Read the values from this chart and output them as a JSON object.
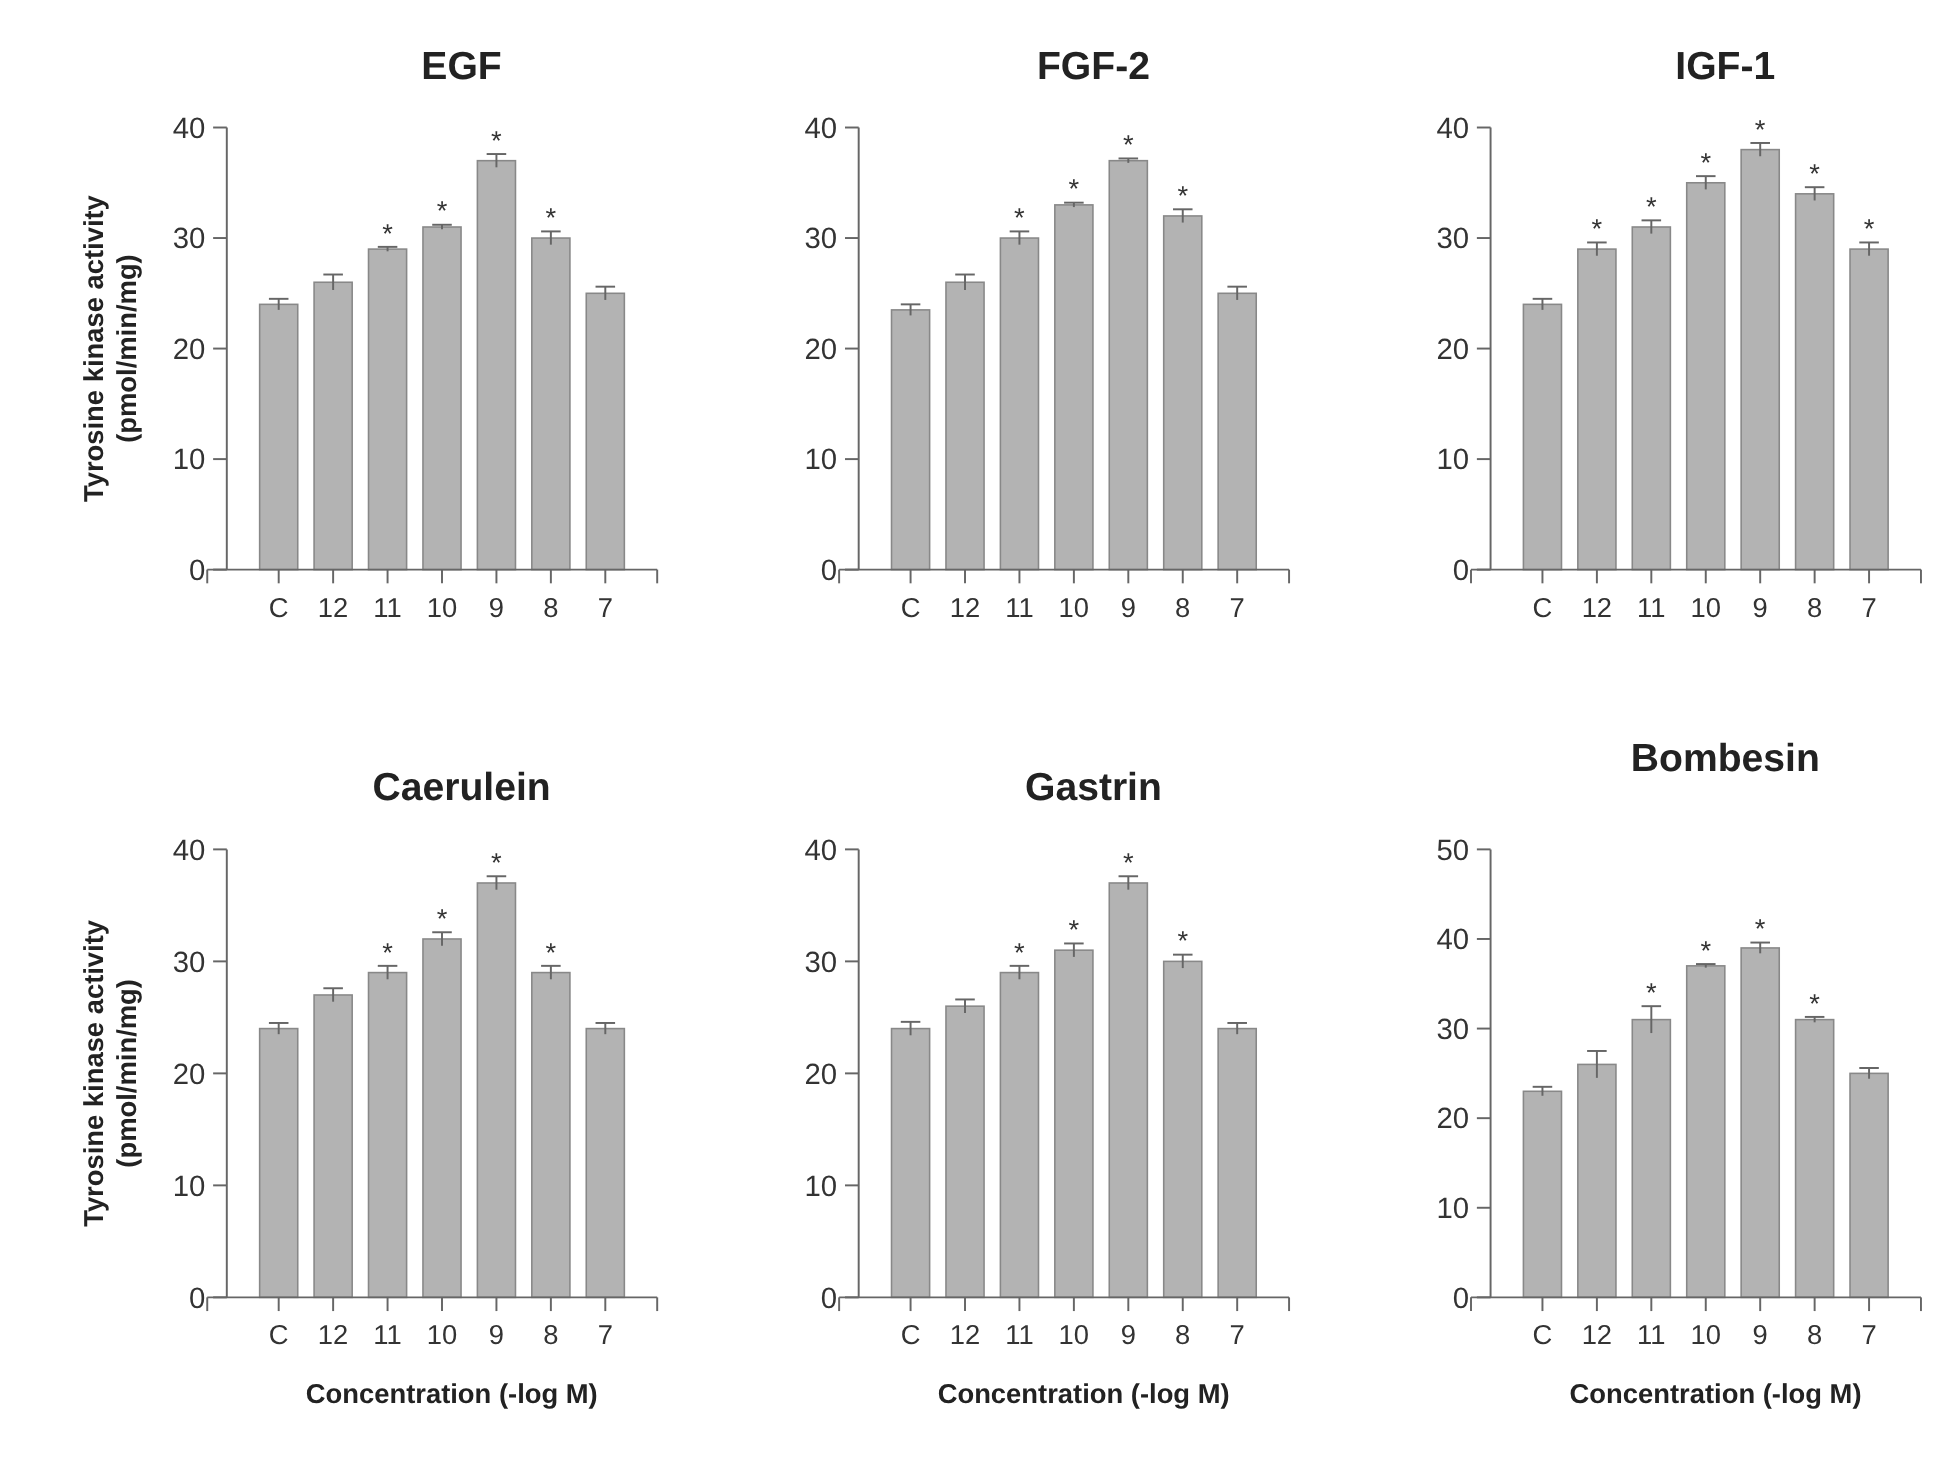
{
  "chart_data": [
    {
      "type": "bar",
      "title": "EGF",
      "ylabel": "Tyrosine kinase activity\n(pmol/min/mg)",
      "categories": [
        "C",
        "12",
        "11",
        "10",
        "9",
        "8",
        "7"
      ],
      "values": [
        24,
        26,
        29,
        31,
        37,
        30,
        25
      ],
      "errors": [
        0.5,
        0.7,
        0.2,
        0.2,
        0.6,
        0.6,
        0.6
      ],
      "color": "#b3b3b3",
      "ylim": [
        0,
        40
      ],
      "yticks": [
        0,
        10,
        20,
        30,
        40
      ],
      "annotations": [
        {
          "text": "*",
          "x": "11",
          "y": 29
        },
        {
          "text": "*",
          "x": "10",
          "y": 31
        },
        {
          "text": "*",
          "x": "9",
          "y": 37
        },
        {
          "text": "*",
          "x": "8",
          "y": 30
        }
      ]
    },
    {
      "type": "bar",
      "title": "FGF-2",
      "categories": [
        "C",
        "12",
        "11",
        "10",
        "9",
        "8",
        "7"
      ],
      "values": [
        23.5,
        26,
        30,
        33,
        37,
        32,
        25
      ],
      "errors": [
        0.5,
        0.7,
        0.6,
        0.2,
        0.2,
        0.6,
        0.6
      ],
      "color": "#b3b3b3",
      "ylim": [
        0,
        40
      ],
      "yticks": [
        0,
        10,
        20,
        30,
        40
      ],
      "annotations": [
        {
          "text": "*",
          "x": "11",
          "y": 30
        },
        {
          "text": "*",
          "x": "10",
          "y": 33
        },
        {
          "text": "*",
          "x": "9",
          "y": 37
        },
        {
          "text": "*",
          "x": "8",
          "y": 32
        }
      ]
    },
    {
      "type": "bar",
      "title": "IGF-1",
      "categories": [
        "C",
        "12",
        "11",
        "10",
        "9",
        "8",
        "7"
      ],
      "values": [
        24,
        29,
        31,
        35,
        38,
        34,
        29
      ],
      "errors": [
        0.5,
        0.6,
        0.6,
        0.6,
        0.6,
        0.6,
        0.6
      ],
      "color": "#b3b3b3",
      "ylim": [
        0,
        40
      ],
      "yticks": [
        0,
        10,
        20,
        30,
        40
      ],
      "annotations": [
        {
          "text": "*",
          "x": "12",
          "y": 29
        },
        {
          "text": "*",
          "x": "11",
          "y": 31
        },
        {
          "text": "*",
          "x": "10",
          "y": 35
        },
        {
          "text": "*",
          "x": "9",
          "y": 38
        },
        {
          "text": "*",
          "x": "8",
          "y": 34
        },
        {
          "text": "*",
          "x": "7",
          "y": 29
        }
      ]
    },
    {
      "type": "bar",
      "title": "Caerulein",
      "xlabel": "Concentration (-log M)",
      "ylabel": "Tyrosine kinase activity\n(pmol/min/mg)",
      "categories": [
        "C",
        "12",
        "11",
        "10",
        "9",
        "8",
        "7"
      ],
      "values": [
        24,
        27,
        29,
        32,
        37,
        29,
        24
      ],
      "errors": [
        0.5,
        0.6,
        0.6,
        0.6,
        0.6,
        0.6,
        0.5
      ],
      "color": "#b3b3b3",
      "ylim": [
        0,
        40
      ],
      "yticks": [
        0,
        10,
        20,
        30,
        40
      ],
      "annotations": [
        {
          "text": "*",
          "x": "11",
          "y": 29
        },
        {
          "text": "*",
          "x": "10",
          "y": 32
        },
        {
          "text": "*",
          "x": "9",
          "y": 37
        },
        {
          "text": "*",
          "x": "8",
          "y": 29
        }
      ]
    },
    {
      "type": "bar",
      "title": "Gastrin",
      "xlabel": "Concentration (-log M)",
      "categories": [
        "C",
        "12",
        "11",
        "10",
        "9",
        "8",
        "7"
      ],
      "values": [
        24,
        26,
        29,
        31,
        37,
        30,
        24
      ],
      "errors": [
        0.6,
        0.6,
        0.6,
        0.6,
        0.6,
        0.6,
        0.5
      ],
      "color": "#b3b3b3",
      "ylim": [
        0,
        40
      ],
      "yticks": [
        0,
        10,
        20,
        30,
        40
      ],
      "annotations": [
        {
          "text": "*",
          "x": "11",
          "y": 29
        },
        {
          "text": "*",
          "x": "10",
          "y": 31
        },
        {
          "text": "*",
          "x": "9",
          "y": 37
        },
        {
          "text": "*",
          "x": "8",
          "y": 30
        }
      ]
    },
    {
      "type": "bar",
      "title": "Bombesin",
      "xlabel": "Concentration (-log M)",
      "categories": [
        "C",
        "12",
        "11",
        "10",
        "9",
        "8",
        "7"
      ],
      "values": [
        23,
        26,
        31,
        37,
        39,
        31,
        25
      ],
      "errors": [
        0.5,
        1.5,
        1.5,
        0.2,
        0.6,
        0.3,
        0.6
      ],
      "color": "#b3b3b3",
      "ylim": [
        0,
        50
      ],
      "yticks": [
        0,
        10,
        20,
        30,
        40,
        50
      ],
      "annotations": [
        {
          "text": "*",
          "x": "11",
          "y": 31
        },
        {
          "text": "*",
          "x": "10",
          "y": 37
        },
        {
          "text": "*",
          "x": "9",
          "y": 39
        },
        {
          "text": "*",
          "x": "8",
          "y": 31
        }
      ]
    }
  ]
}
